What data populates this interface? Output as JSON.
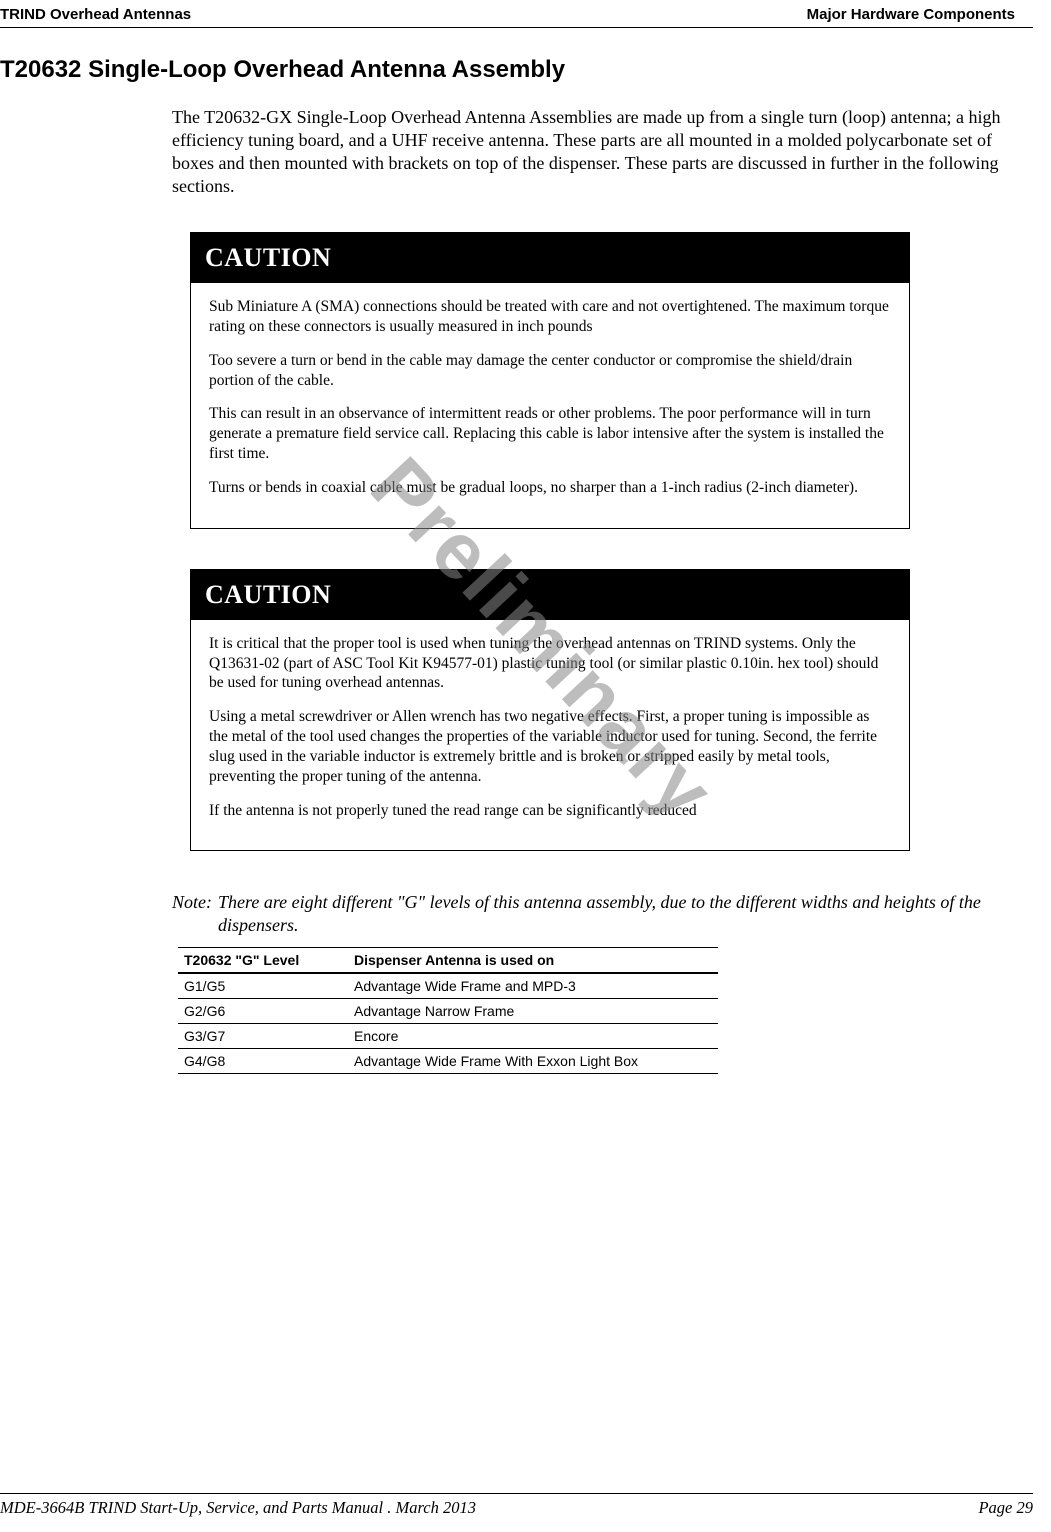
{
  "header": {
    "left": "TRIND Overhead Antennas",
    "right": "Major Hardware Components"
  },
  "watermark": "Preliminary",
  "section": {
    "title": "T20632 Single-Loop Overhead Antenna Assembly",
    "intro": "The T20632-GX Single-Loop Overhead Antenna Assemblies are made up from a single turn (loop) antenna; a high efficiency tuning board, and a UHF receive antenna. These parts are all mounted in a molded polycarbonate set of boxes and then mounted with brackets on top of the dispenser. These parts are discussed in further in the following sections."
  },
  "caution1": {
    "label": "CAUTION",
    "p1": "Sub Miniature A (SMA) connections should be treated with care and not overtightened. The maximum torque rating on these connectors is usually measured in inch pounds",
    "p2": "Too severe a turn or bend in the cable may damage the center conductor or compromise the shield/drain portion of the cable.",
    "p3": "This can result in an observance of intermittent reads or other problems. The poor performance will in turn generate a premature field service call. Replacing this cable is labor intensive after the system is installed the first time.",
    "p4": "Turns or bends in coaxial cable must be gradual loops, no sharper than a 1-inch radius (2-inch diameter)."
  },
  "caution2": {
    "label": "CAUTION",
    "p1": "It is critical that the proper tool is used when tuning the overhead antennas on TRIND systems. Only the Q13631-02 (part of ASC Tool Kit K94577-01) plastic tuning tool (or similar plastic 0.10in. hex tool) should be used for tuning overhead antennas.",
    "p2": "Using a metal screwdriver or Allen wrench has two negative effects. First, a proper tuning is impossible as the metal of the tool used changes the properties of the variable inductor used for tuning. Second, the ferrite slug used in the variable inductor is extremely brittle and is broken or stripped easily by metal tools, preventing the proper tuning of the antenna.",
    "p3": "If the antenna is not properly tuned the read range can be significantly reduced"
  },
  "note": {
    "label": "Note:",
    "text": "There are eight different \"G\" levels of this antenna assembly, due to the different widths and heights of the dispensers."
  },
  "gtable": {
    "col1": "T20632 \"G\" Level",
    "col2": "Dispenser Antenna is used on",
    "rows": [
      {
        "level": "G1/G5",
        "disp": "Advantage Wide Frame and MPD-3"
      },
      {
        "level": "G2/G6",
        "disp": "Advantage Narrow Frame"
      },
      {
        "level": "G3/G7",
        "disp": "Encore"
      },
      {
        "level": "G4/G8",
        "disp": "Advantage Wide Frame With Exxon Light Box"
      }
    ]
  },
  "footer": {
    "left": "MDE-3664B TRIND Start-Up, Service, and Parts Manual . March 2013",
    "right": "Page 29"
  }
}
